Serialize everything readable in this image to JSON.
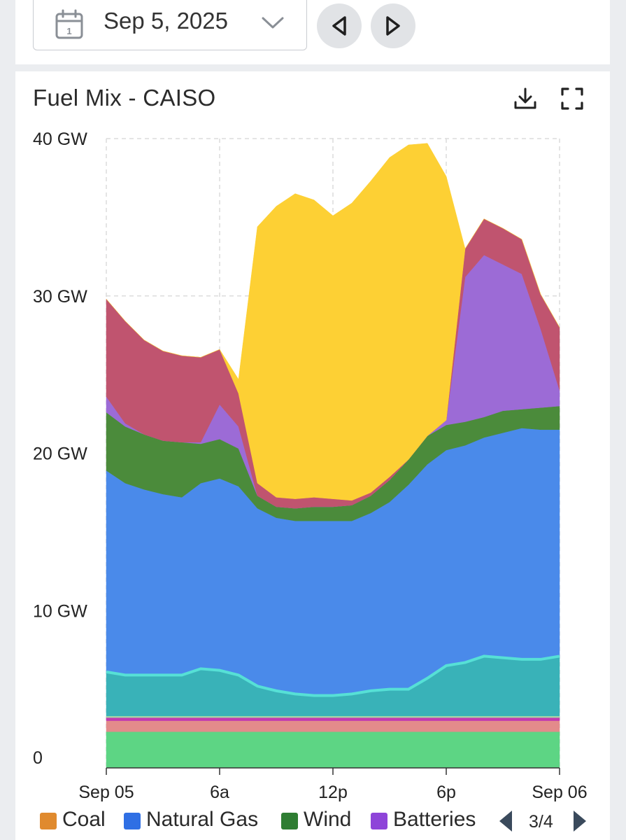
{
  "toolbar": {
    "date": "Sep 5, 2025"
  },
  "card": {
    "title": "Fuel Mix - CAISO"
  },
  "icons": {
    "calendar": "calendar-icon",
    "dropdown": "chevron-down-icon",
    "prev": "triangle-left-icon",
    "next": "triangle-right-icon",
    "download": "download-icon",
    "fullscreen": "fullscreen-icon"
  },
  "legend": {
    "items": [
      {
        "label": "Coal",
        "color": "#e08a2e"
      },
      {
        "label": "Natural Gas",
        "color": "#2f6fe4"
      },
      {
        "label": "Wind",
        "color": "#2e7d32"
      },
      {
        "label": "Batteries",
        "color": "#8e44d9"
      }
    ],
    "page": "3/4"
  },
  "chart_data": {
    "type": "area",
    "stacked": true,
    "title": "Fuel Mix - CAISO",
    "x": [
      "00:00",
      "01:00",
      "02:00",
      "03:00",
      "04:00",
      "05:00",
      "06:00",
      "07:00",
      "08:00",
      "09:00",
      "10:00",
      "11:00",
      "12:00",
      "13:00",
      "14:00",
      "15:00",
      "16:00",
      "17:00",
      "18:00",
      "19:00",
      "20:00",
      "21:00",
      "22:00",
      "23:00",
      "24:00"
    ],
    "x_ticks": [
      "Sep 05",
      "6a",
      "12p",
      "6p",
      "Sep 06"
    ],
    "y_ticks": [
      "0",
      "10 GW",
      "20 GW",
      "30 GW",
      "40 GW"
    ],
    "ylim": [
      0,
      40
    ],
    "y_unit": "GW",
    "grid": true,
    "series": [
      {
        "color": "#5dd584",
        "values": [
          2.3,
          2.3,
          2.3,
          2.3,
          2.3,
          2.3,
          2.3,
          2.3,
          2.3,
          2.3,
          2.3,
          2.3,
          2.3,
          2.3,
          2.3,
          2.3,
          2.3,
          2.3,
          2.3,
          2.3,
          2.3,
          2.3,
          2.3,
          2.3,
          2.3
        ]
      },
      {
        "color": "#e38b8b",
        "values": [
          0.7,
          0.7,
          0.7,
          0.7,
          0.7,
          0.7,
          0.7,
          0.7,
          0.7,
          0.7,
          0.7,
          0.7,
          0.7,
          0.7,
          0.7,
          0.7,
          0.7,
          0.7,
          0.7,
          0.7,
          0.7,
          0.7,
          0.7,
          0.7,
          0.7
        ]
      },
      {
        "color": "#c13bb0",
        "values": [
          0.2,
          0.2,
          0.2,
          0.2,
          0.2,
          0.2,
          0.2,
          0.2,
          0.2,
          0.2,
          0.2,
          0.2,
          0.2,
          0.2,
          0.2,
          0.2,
          0.2,
          0.2,
          0.2,
          0.2,
          0.2,
          0.2,
          0.2,
          0.2,
          0.2
        ]
      },
      {
        "color": "#a6d7a8",
        "values": [
          0.1,
          0.1,
          0.1,
          0.1,
          0.1,
          0.1,
          0.1,
          0.1,
          0.1,
          0.1,
          0.1,
          0.1,
          0.1,
          0.1,
          0.1,
          0.1,
          0.1,
          0.1,
          0.1,
          0.1,
          0.1,
          0.1,
          0.1,
          0.1,
          0.1
        ]
      },
      {
        "color": "#39b2b8",
        "values": [
          2.8,
          2.6,
          2.6,
          2.6,
          2.6,
          3.0,
          2.9,
          2.6,
          1.9,
          1.6,
          1.4,
          1.3,
          1.3,
          1.4,
          1.6,
          1.7,
          1.7,
          2.4,
          3.2,
          3.4,
          3.8,
          3.7,
          3.6,
          3.6,
          3.8
        ]
      },
      {
        "color": "#4a8aea",
        "values": [
          12.8,
          12.2,
          11.8,
          11.5,
          11.3,
          11.8,
          12.2,
          12.0,
          11.3,
          11.0,
          11.0,
          11.1,
          11.1,
          11.0,
          11.3,
          11.9,
          13.0,
          13.6,
          13.7,
          13.8,
          13.9,
          14.3,
          14.7,
          14.6,
          14.4
        ]
      },
      {
        "color": "#4b8b3b",
        "values": [
          3.7,
          3.6,
          3.5,
          3.4,
          3.5,
          2.5,
          2.5,
          2.4,
          0.8,
          0.7,
          0.8,
          0.9,
          0.9,
          1.0,
          1.1,
          1.4,
          1.6,
          1.8,
          1.6,
          1.5,
          1.3,
          1.4,
          1.2,
          1.4,
          1.5
        ]
      },
      {
        "color": "#9c6bd6",
        "values": [
          1.0,
          0.2,
          0,
          0,
          0,
          0.1,
          2.2,
          1.4,
          0,
          0,
          0,
          0,
          0,
          0,
          0,
          0,
          0,
          0,
          0.3,
          9.2,
          10.3,
          9.3,
          8.6,
          5.0,
          1.0
        ]
      },
      {
        "color": "#c0546f",
        "values": [
          6.2,
          6.5,
          6.0,
          5.7,
          5.5,
          5.4,
          3.5,
          2.1,
          0.8,
          0.6,
          0.6,
          0.6,
          0.5,
          0.3,
          0.2,
          0.2,
          0.0,
          0.0,
          0,
          1.8,
          2.3,
          2.3,
          2.2,
          2.2,
          4.0
        ]
      },
      {
        "color": "#fdd034",
        "values": [
          0,
          0,
          0,
          0,
          0,
          0,
          0,
          0.9,
          16.3,
          18.5,
          19.4,
          18.9,
          18.0,
          18.9,
          19.8,
          20.3,
          20.0,
          18.6,
          15.5,
          0,
          0,
          0,
          0,
          0,
          0
        ]
      },
      {
        "color": "#f0a8a8",
        "values": [
          0,
          0,
          0,
          0,
          0,
          0,
          0,
          0,
          0,
          0,
          0,
          0,
          0,
          0,
          0,
          0,
          0,
          0,
          0,
          0,
          0,
          0,
          0,
          0,
          0
        ]
      }
    ]
  }
}
